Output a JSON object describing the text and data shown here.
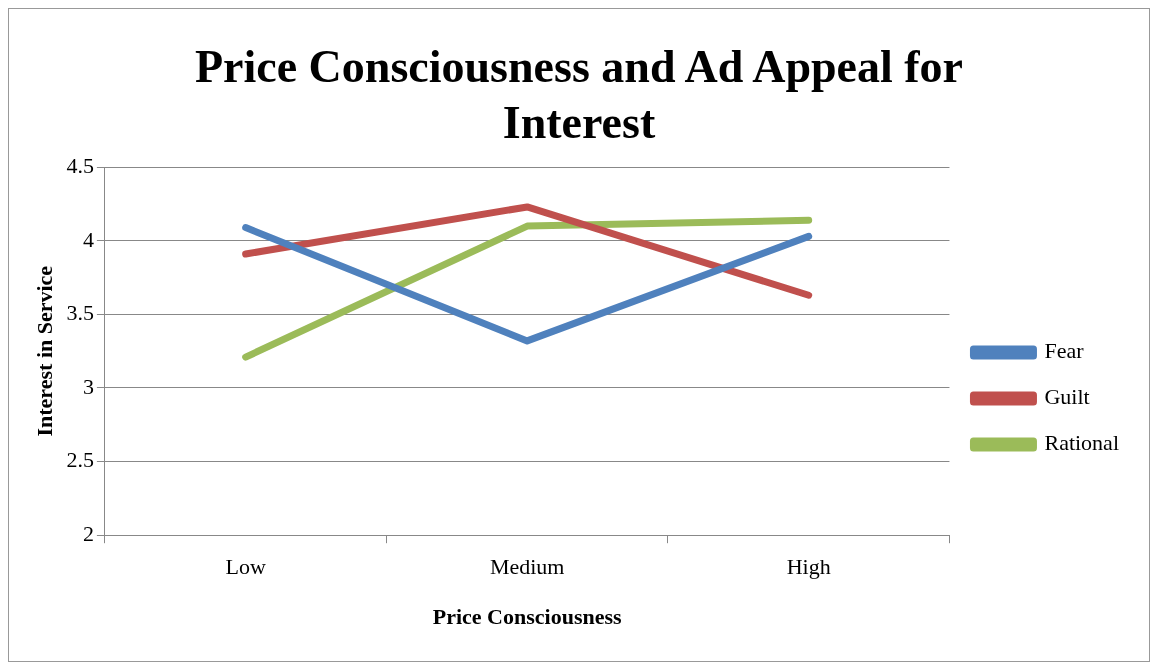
{
  "chart_data": {
    "type": "line",
    "title": "Price Consciousness and Ad Appeal for Interest",
    "xlabel": "Price Consciousness",
    "ylabel": "Interest in Service",
    "categories": [
      "Low",
      "Medium",
      "High"
    ],
    "series": [
      {
        "name": "Fear",
        "color": "#4f81bd",
        "values": [
          4.09,
          3.32,
          4.03
        ]
      },
      {
        "name": "Guilt",
        "color": "#c0504d",
        "values": [
          3.91,
          4.23,
          3.63
        ]
      },
      {
        "name": "Rational",
        "color": "#9bbb59",
        "values": [
          3.21,
          4.1,
          4.14
        ]
      }
    ],
    "ylim": [
      2,
      4.5
    ],
    "yticks": [
      2,
      2.5,
      3,
      3.5,
      4,
      4.5
    ],
    "grid": "y",
    "legend": "right",
    "marker": "none"
  }
}
